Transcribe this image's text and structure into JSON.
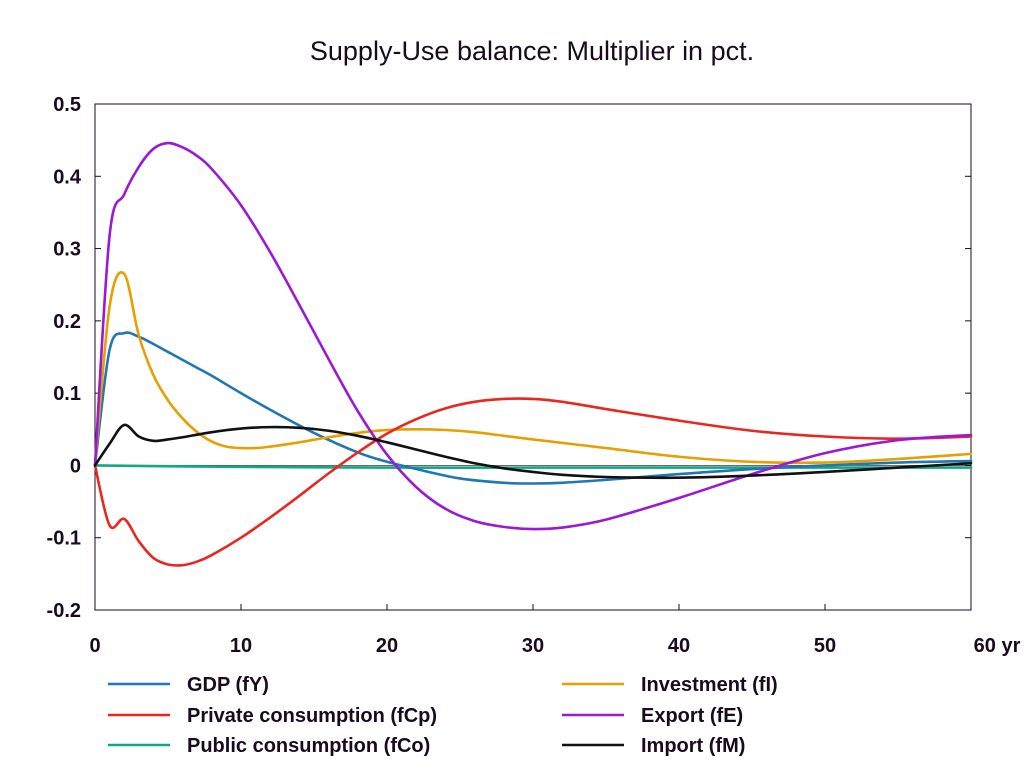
{
  "chart_data": {
    "type": "line",
    "title": "Supply-Use balance: Multiplier in pct.",
    "xlabel": "",
    "ylabel": "",
    "x_unit_label": "yr",
    "xlim": [
      0,
      60
    ],
    "ylim": [
      -0.2,
      0.5
    ],
    "x_ticks": [
      0,
      10,
      20,
      30,
      40,
      50,
      60
    ],
    "y_ticks": [
      -0.2,
      -0.1,
      0,
      0.1,
      0.2,
      0.3,
      0.4,
      0.5
    ],
    "x_tick_labels": [
      "0",
      "10",
      "20",
      "30",
      "40",
      "50",
      "60 yr"
    ],
    "y_tick_labels": [
      "-0.2",
      "-0.1",
      "0",
      "0.1",
      "0.2",
      "0.3",
      "0.4",
      "0.5"
    ],
    "grid": false,
    "legend_position": "bottom",
    "series": [
      {
        "name": "GDP (fY)",
        "color": "#1f77b4",
        "x": [
          0,
          1,
          2,
          3,
          4,
          5,
          6,
          7,
          8,
          10,
          12,
          15,
          18,
          20,
          22,
          25,
          28,
          30,
          32,
          35,
          40,
          45,
          50,
          55,
          60
        ],
        "y": [
          0,
          0.16,
          0.183,
          0.178,
          0.168,
          0.157,
          0.146,
          0.135,
          0.124,
          0.1,
          0.077,
          0.045,
          0.018,
          0.005,
          -0.005,
          -0.018,
          -0.024,
          -0.025,
          -0.024,
          -0.02,
          -0.012,
          -0.005,
          0,
          0.004,
          0.006
        ]
      },
      {
        "name": "Investment (fI)",
        "color": "#e6a000",
        "x": [
          0,
          1,
          2,
          3,
          4,
          5,
          6,
          7,
          8,
          9,
          10,
          11,
          12,
          14,
          16,
          18,
          20,
          22,
          24,
          26,
          28,
          30,
          35,
          40,
          45,
          50,
          55,
          60
        ],
        "y": [
          0,
          0.22,
          0.265,
          0.18,
          0.125,
          0.09,
          0.065,
          0.046,
          0.033,
          0.026,
          0.024,
          0.024,
          0.026,
          0.032,
          0.039,
          0.045,
          0.049,
          0.05,
          0.049,
          0.046,
          0.041,
          0.036,
          0.024,
          0.012,
          0.005,
          0.004,
          0.009,
          0.016
        ]
      },
      {
        "name": "Private consumption (fCp)",
        "color": "#e8281e",
        "x": [
          0,
          1,
          2,
          3,
          4,
          5,
          6,
          7,
          8,
          10,
          12,
          14,
          16,
          18,
          20,
          22,
          24,
          26,
          28,
          30,
          32,
          35,
          40,
          45,
          50,
          55,
          60
        ],
        "y": [
          0,
          -0.083,
          -0.074,
          -0.105,
          -0.128,
          -0.137,
          -0.138,
          -0.133,
          -0.124,
          -0.1,
          -0.072,
          -0.042,
          -0.011,
          0.018,
          0.044,
          0.064,
          0.079,
          0.088,
          0.092,
          0.092,
          0.088,
          0.078,
          0.062,
          0.048,
          0.04,
          0.037,
          0.04
        ]
      },
      {
        "name": "Export (fE)",
        "color": "#9a19d6",
        "x": [
          0,
          1,
          2,
          3,
          4,
          5,
          6,
          7,
          8,
          10,
          12,
          14,
          16,
          18,
          20,
          22,
          24,
          26,
          28,
          30,
          32,
          35,
          40,
          45,
          50,
          55,
          60
        ],
        "y": [
          0,
          0.318,
          0.375,
          0.413,
          0.438,
          0.446,
          0.44,
          0.428,
          0.41,
          0.36,
          0.295,
          0.222,
          0.147,
          0.075,
          0.015,
          -0.03,
          -0.06,
          -0.077,
          -0.085,
          -0.088,
          -0.086,
          -0.075,
          -0.045,
          -0.012,
          0.017,
          0.035,
          0.042
        ]
      },
      {
        "name": "Public consumption (fCo)",
        "color": "#12a884",
        "x": [
          0,
          10,
          20,
          30,
          40,
          50,
          60
        ],
        "y": [
          0,
          -0.002,
          -0.003,
          -0.003,
          -0.003,
          -0.003,
          -0.003
        ]
      },
      {
        "name": "Import (fM)",
        "color": "#111111",
        "x": [
          0,
          1,
          2,
          3,
          4,
          5,
          6,
          8,
          10,
          12,
          14,
          16,
          18,
          20,
          22,
          24,
          26,
          28,
          30,
          32,
          35,
          40,
          45,
          50,
          55,
          60
        ],
        "y": [
          0,
          0.03,
          0.056,
          0.04,
          0.034,
          0.036,
          0.039,
          0.046,
          0.051,
          0.053,
          0.052,
          0.048,
          0.041,
          0.032,
          0.022,
          0.012,
          0.003,
          -0.004,
          -0.009,
          -0.013,
          -0.016,
          -0.017,
          -0.014,
          -0.009,
          -0.003,
          0.003
        ]
      }
    ]
  },
  "legend": {
    "items": [
      {
        "label": "GDP (fY)",
        "color": "#1f77b4"
      },
      {
        "label": "Investment (fI)",
        "color": "#e6a000"
      },
      {
        "label": "Private consumption (fCp)",
        "color": "#e8281e"
      },
      {
        "label": "Export (fE)",
        "color": "#9a19d6"
      },
      {
        "label": "Public consumption (fCo)",
        "color": "#12a884"
      },
      {
        "label": "Import (fM)",
        "color": "#111111"
      }
    ]
  }
}
